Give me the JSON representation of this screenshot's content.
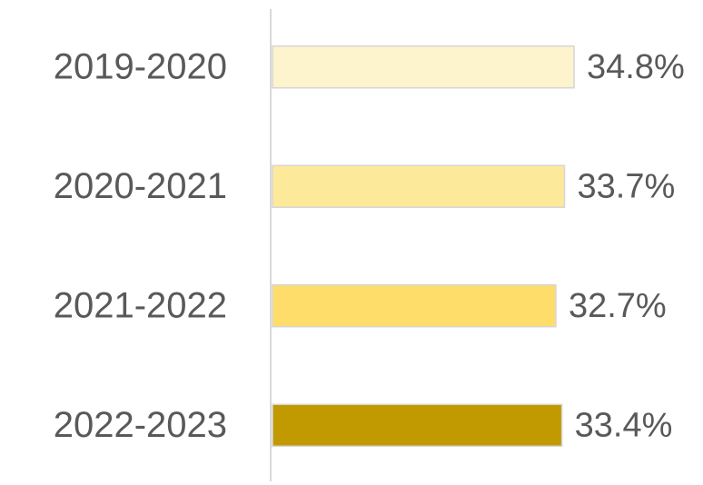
{
  "chart_data": {
    "type": "bar",
    "categories": [
      "2019-2020",
      "2020-2021",
      "2021-2022",
      "2022-2023"
    ],
    "values": [
      34.8,
      33.7,
      32.7,
      33.4
    ],
    "value_labels": [
      "34.8%",
      "33.7%",
      "32.7%",
      "33.4%"
    ],
    "colors": [
      "#fdf3cc",
      "#fde99a",
      "#fedd6a",
      "#c09a00"
    ]
  }
}
